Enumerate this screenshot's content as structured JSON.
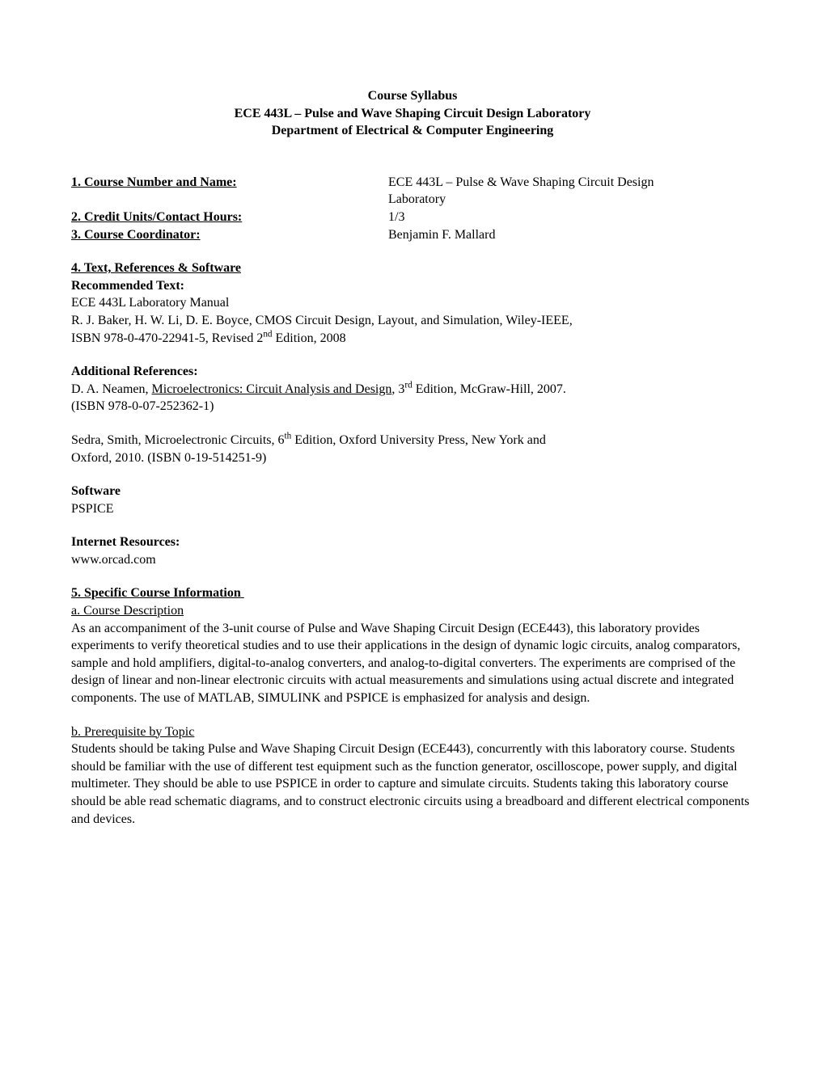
{
  "header": {
    "line1": "Course Syllabus",
    "line2": "ECE 443L – Pulse and Wave Shaping Circuit Design Laboratory",
    "line3": "Department of Electrical & Computer Engineering"
  },
  "items": {
    "courseNumberLabel": "1. Course Number and Name:",
    "courseNumberValue1": "ECE 443L – Pulse & Wave Shaping Circuit Design",
    "courseNumberValue2": "Laboratory",
    "creditLabel": "2. Credit Units/Contact Hours:",
    "creditValue": "1/3",
    "coordinatorLabel": "3. Course Coordinator:",
    "coordinatorValue": "Benjamin F. Mallard",
    "textLabel": "4. Text, References & Software",
    "recommendedTextLabel": "Recommended Text:",
    "recText1": "ECE 443L Laboratory Manual",
    "recText2a": "R. J. Baker, H. W. Li, D. E. Boyce, CMOS Circuit Design, Layout, and Simulation, Wiley-IEEE,",
    "recText2b_before": "ISBN 978-0-470-22941-5, Revised 2",
    "recText2b_sup": "nd",
    "recText2b_after": " Edition, 2008",
    "additionalRefLabel": "Additional References:",
    "addRef1a": "D. A. Neamen, ",
    "addRef1_title": "Microelectronics: Circuit Analysis and Design",
    "addRef1b_before": ", 3",
    "addRef1b_sup": "rd",
    "addRef1b_after": " Edition,  McGraw-Hill, 2007.",
    "addRef1c": "(ISBN 978-0-07-252362-1)",
    "addRef2a_before": "Sedra, Smith, Microelectronic Circuits, 6",
    "addRef2a_sup": "th",
    "addRef2a_after": " Edition, Oxford University Press, New York and",
    "addRef2b": "Oxford, 2010. (ISBN 0-19-514251-9)",
    "softwareLabel": "Software",
    "softwareValue": "PSPICE",
    "internetLabel": "Internet Resources:",
    "internetValue": "www.orcad.com",
    "specificLabel": "5. Specific Course Information",
    "courseDescLabel": "a. Course Description",
    "courseDescText": "As an accompaniment of the 3-unit course of Pulse and Wave Shaping Circuit Design (ECE443), this laboratory provides experiments to verify theoretical studies and to use their applications in the design of dynamic logic circuits, analog comparators, sample and hold amplifiers, digital-to-analog converters, and analog-to-digital converters.  The experiments are comprised of the design of linear and non-linear electronic circuits with actual measurements and simulations using actual discrete and integrated components. The use of  MATLAB, SIMULINK and PSPICE is emphasized for analysis and design.",
    "prereqLabel": "b. Prerequisite by Topic",
    "prereqText": "Students should be taking Pulse and Wave Shaping Circuit Design (ECE443), concurrently with this laboratory course. Students should be familiar with the use of different test equipment such as the function generator, oscilloscope, power supply, and digital multimeter. They should be able to use PSPICE in order to capture and simulate circuits. Students taking this laboratory course should be able read schematic diagrams, and to construct electronic circuits using a breadboard and different electrical components and devices."
  }
}
